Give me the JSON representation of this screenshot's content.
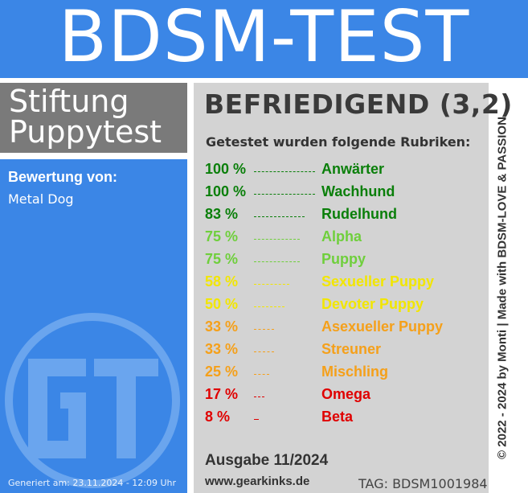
{
  "header": {
    "title": "BDSM-TEST"
  },
  "brand": {
    "line1": "Stiftung",
    "line2": "Puppytest"
  },
  "left": {
    "rating_label": "Bewertung von:",
    "rating_name": "Metal Dog",
    "generated": "Generiert am: 23.11.2024 - 12:09 Uhr",
    "logo_icon": "gt-logo-icon"
  },
  "main": {
    "grade": "BEFRIEDIGEND (3,2)",
    "intro": "Getestet wurden folgende Rubriken:",
    "results": [
      {
        "percent": "100 %",
        "value": 100,
        "category": "Anwärter",
        "color": "#0a7f0a"
      },
      {
        "percent": "100 %",
        "value": 100,
        "category": "Wachhund",
        "color": "#0a7f0a"
      },
      {
        "percent": "83 %",
        "value": 83,
        "category": "Rudelhund",
        "color": "#0a7f0a"
      },
      {
        "percent": "75 %",
        "value": 75,
        "category": "Alpha",
        "color": "#6fcf3c"
      },
      {
        "percent": "75 %",
        "value": 75,
        "category": "Puppy",
        "color": "#6fcf3c"
      },
      {
        "percent": "58 %",
        "value": 58,
        "category": "Sexueller Puppy",
        "color": "#f2e600"
      },
      {
        "percent": "50 %",
        "value": 50,
        "category": "Devoter Puppy",
        "color": "#f2e600"
      },
      {
        "percent": "33 %",
        "value": 33,
        "category": "Asexueller Puppy",
        "color": "#f5a01a"
      },
      {
        "percent": "33 %",
        "value": 33,
        "category": "Streuner",
        "color": "#f5a01a"
      },
      {
        "percent": "25 %",
        "value": 25,
        "category": "Mischling",
        "color": "#f5a01a"
      },
      {
        "percent": "17 %",
        "value": 17,
        "category": "Omega",
        "color": "#e00000"
      },
      {
        "percent": "8 %",
        "value": 8,
        "category": "Beta",
        "color": "#e00000"
      }
    ],
    "edition": "Ausgabe 11/2024",
    "website": "www.gearkinks.de",
    "tag": "TAG: BDSM1001984"
  },
  "side": {
    "copyright": "© 2022 - 2024 by Monti | Made with BDSM-LOVE & PASSION"
  },
  "colors": {
    "blue": "#3b86e6",
    "gray_box": "#7a7a7a",
    "panel": "#d3d3d3"
  }
}
